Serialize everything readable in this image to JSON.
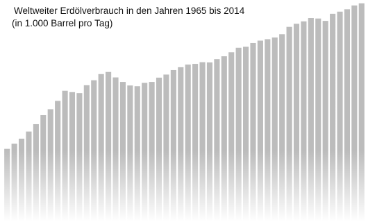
{
  "chart_data": {
    "type": "bar",
    "title": "Weltweiter Erdölverbrauch in den Jahren 1965 bis 2014",
    "subtitle": "(in 1.000 Barrel pro Tag)",
    "values": [
      30800,
      33000,
      35100,
      38100,
      41200,
      45000,
      47500,
      51000,
      55300,
      54700,
      54300,
      57600,
      59700,
      62300,
      63200,
      60900,
      59000,
      57500,
      57200,
      58600,
      59000,
      60800,
      62100,
      64000,
      65200,
      66300,
      66600,
      67300,
      67200,
      68600,
      69800,
      71500,
      73400,
      73800,
      75400,
      76400,
      77000,
      77700,
      79100,
      82200,
      83500,
      84500,
      85900,
      85700,
      84700,
      87700,
      88600,
      89600,
      91200,
      92100
    ],
    "color": "#bcbcbc",
    "ylim": [
      0,
      93500
    ]
  }
}
